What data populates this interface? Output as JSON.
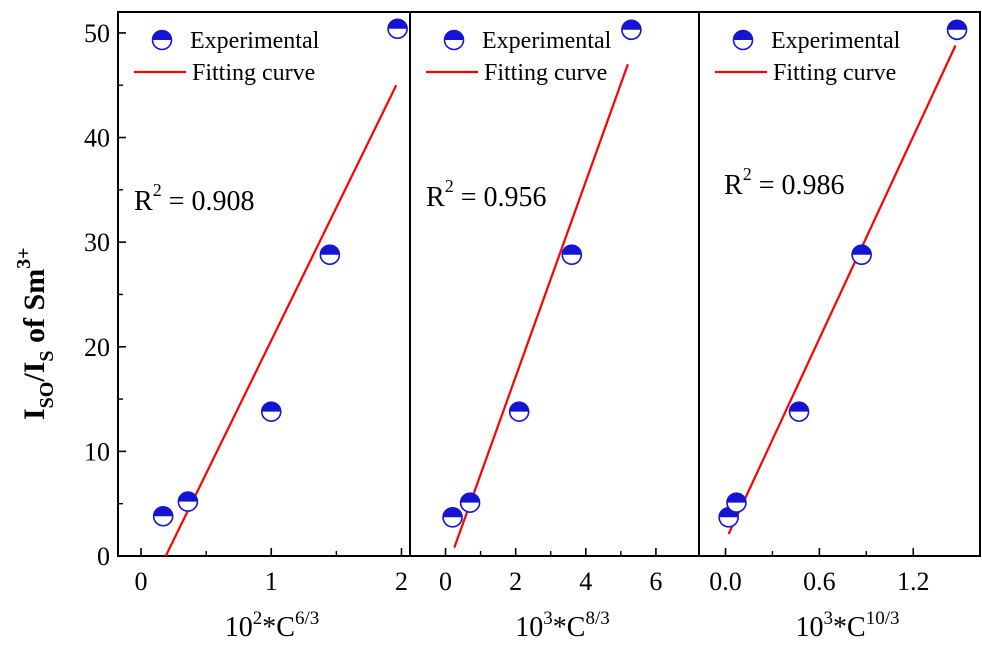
{
  "chart_data": {
    "type": "scatter",
    "ylabel": {
      "main": "I",
      "sub1": "SO",
      "slash": "/I",
      "sub2": "S",
      "mid": " of Sm",
      "sup": "3+"
    },
    "ylim": [
      0,
      52
    ],
    "yticks": [
      0,
      10,
      20,
      30,
      40,
      50
    ],
    "colors": {
      "marker": "#1414d2",
      "fit": "#ff0000"
    },
    "legend": {
      "experimental": "Experimental",
      "fit": "Fitting curve",
      "position": "top"
    },
    "panels": [
      {
        "xlabel": {
          "base": "10",
          "exp1": "2",
          "mid": "*C",
          "exp2": "6/3"
        },
        "xlim": [
          -0.1,
          2.05
        ],
        "xticks": [
          0,
          1,
          2
        ],
        "xtick_labels": [
          "0",
          "1",
          "2"
        ],
        "r2": {
          "prefix": "R",
          "exp": "2",
          "value": " = 0.908"
        },
        "series": [
          {
            "name": "Experimental",
            "x": [
              0.17,
              0.36,
              1.0,
              1.45,
              1.97
            ],
            "y": [
              3.8,
              5.2,
              13.8,
              28.8,
              50.4
            ]
          },
          {
            "name": "Fitting curve",
            "x": [
              0.19,
              1.96
            ],
            "y": [
              0,
              45.0
            ]
          }
        ]
      },
      {
        "xlabel": {
          "base": "10",
          "exp1": "3",
          "mid": "*C",
          "exp2": "8/3"
        },
        "xlim": [
          -0.5,
          7.0
        ],
        "xticks": [
          0,
          2,
          4,
          6
        ],
        "xtick_labels": [
          "0",
          "2",
          "4",
          "6"
        ],
        "r2": {
          "prefix": "R",
          "exp": "2",
          "value": " = 0.956"
        },
        "series": [
          {
            "name": "Experimental",
            "x": [
              0.2,
              0.7,
              2.1,
              3.6,
              5.3
            ],
            "y": [
              3.7,
              5.1,
              13.8,
              28.8,
              50.3
            ]
          },
          {
            "name": "Fitting curve",
            "x": [
              0.25,
              5.2
            ],
            "y": [
              0.8,
              47.0
            ]
          }
        ]
      },
      {
        "xlabel": {
          "base": "10",
          "exp1": "3",
          "mid": "*C",
          "exp2": "10/3"
        },
        "xlim": [
          -0.08,
          1.55
        ],
        "xticks": [
          0.0,
          0.6,
          1.2
        ],
        "xtick_labels": [
          "0.0",
          "0.6",
          "1.2"
        ],
        "r2": {
          "prefix": "R",
          "exp": "2",
          "value": " = 0.986"
        },
        "series": [
          {
            "name": "Experimental",
            "x": [
              0.02,
              0.07,
              0.47,
              0.87,
              1.48
            ],
            "y": [
              3.7,
              5.1,
              13.8,
              28.8,
              50.3
            ]
          },
          {
            "name": "Fitting curve",
            "x": [
              0.02,
              1.47
            ],
            "y": [
              2.1,
              48.8
            ]
          }
        ]
      }
    ]
  }
}
